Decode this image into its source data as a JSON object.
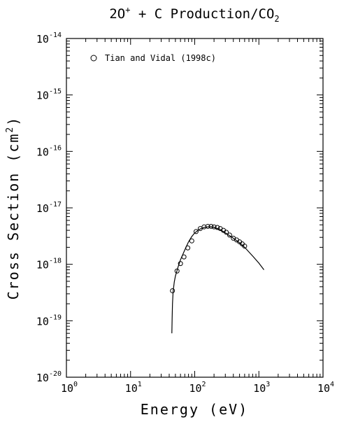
{
  "chart_data": {
    "type": "scatter",
    "title_parts": {
      "lead": "2O",
      "sup": "+",
      "mid": " + C Production/CO",
      "sub": "2"
    },
    "xlabel": "Energy (eV)",
    "ylabel_parts": {
      "lead": "Cross Section (cm",
      "sup": "2",
      "tail": ")"
    },
    "x_scale": "log",
    "y_scale": "log",
    "xlim": [
      1,
      10000
    ],
    "ylim": [
      1e-20,
      1e-14
    ],
    "x_ticks": [
      {
        "base": "10",
        "exp": "0",
        "value": 1
      },
      {
        "base": "10",
        "exp": "1",
        "value": 10
      },
      {
        "base": "10",
        "exp": "2",
        "value": 100
      },
      {
        "base": "10",
        "exp": "3",
        "value": 1000
      },
      {
        "base": "10",
        "exp": "4",
        "value": 10000
      }
    ],
    "y_ticks": [
      {
        "base": "10",
        "exp": "-20",
        "value": 1e-20
      },
      {
        "base": "10",
        "exp": "-19",
        "value": 1e-19
      },
      {
        "base": "10",
        "exp": "-18",
        "value": 1e-18
      },
      {
        "base": "10",
        "exp": "-17",
        "value": 1e-17
      },
      {
        "base": "10",
        "exp": "-16",
        "value": 1e-16
      },
      {
        "base": "10",
        "exp": "-15",
        "value": 1e-15
      },
      {
        "base": "10",
        "exp": "-14",
        "value": 1e-14
      }
    ],
    "legend_position": "top-left",
    "series": [
      {
        "name": "Tian and Vidal (1998c)",
        "style": "open-circle",
        "x": [
          45,
          53,
          60,
          68,
          78,
          90,
          105,
          122,
          140,
          160,
          180,
          200,
          225,
          250,
          280,
          310,
          350,
          400,
          450,
          500,
          550,
          600
        ],
        "y": [
          3.4e-19,
          7.6e-19,
          1.03e-18,
          1.35e-18,
          1.95e-18,
          2.6e-18,
          3.8e-18,
          4.3e-18,
          4.6e-18,
          4.7e-18,
          4.7e-18,
          4.6e-18,
          4.5e-18,
          4.3e-18,
          4e-18,
          3.7e-18,
          3.3e-18,
          2.9e-18,
          2.7e-18,
          2.5e-18,
          2.3e-18,
          2.1e-18
        ]
      },
      {
        "style": "line",
        "x": [
          44,
          44.5,
          45,
          46,
          48,
          50,
          55,
          60,
          70,
          80,
          90,
          100,
          120,
          140,
          160,
          180,
          200,
          250,
          300,
          400,
          500,
          600,
          800,
          1000,
          1200
        ],
        "y": [
          6e-20,
          1.1e-19,
          2e-19,
          3.3e-19,
          4.9e-19,
          6.2e-19,
          9e-19,
          1.2e-18,
          1.8e-18,
          2.5e-18,
          3.1e-18,
          3.6e-18,
          4.2e-18,
          4.5e-18,
          4.6e-18,
          4.6e-18,
          4.5e-18,
          4.1e-18,
          3.6e-18,
          2.9e-18,
          2.4e-18,
          2e-18,
          1.4e-18,
          1.05e-18,
          8e-19
        ]
      }
    ]
  }
}
